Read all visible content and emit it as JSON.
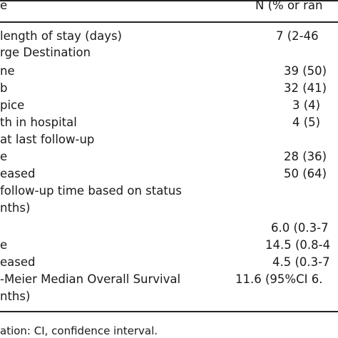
{
  "header": {
    "col1": "e",
    "col2": "N (% or ran"
  },
  "rows": [
    {
      "label": " length of stay (days)",
      "value": "7 (2-46"
    },
    {
      "label": "rge Destination",
      "value": ""
    },
    {
      "label": "ne",
      "value": "39 (50)"
    },
    {
      "label": "b",
      "value": "32 (41)"
    },
    {
      "label": "pice",
      "value": "3 (4)"
    },
    {
      "label": "th in hospital",
      "value": "4 (5)"
    },
    {
      "label": "at last follow-up",
      "value": ""
    },
    {
      "label": "e",
      "value": "28 (36)"
    },
    {
      "label": "eased",
      "value": "50 (64)"
    },
    {
      "label": " follow-up time based on status",
      "value": ""
    },
    {
      "label": "nths)",
      "value": ""
    },
    {
      "label": "",
      "value": "6.0 (0.3-7"
    },
    {
      "label": "e",
      "value": "14.5 (0.8-4"
    },
    {
      "label": "eased",
      "value": "4.5 (0.3-7"
    },
    {
      "label": "-Meier Median Overall Survival",
      "value": "11.6 (95%CI 6."
    },
    {
      "label": "nths)",
      "value": ""
    }
  ],
  "footnote": "ation: CI, confidence interval."
}
